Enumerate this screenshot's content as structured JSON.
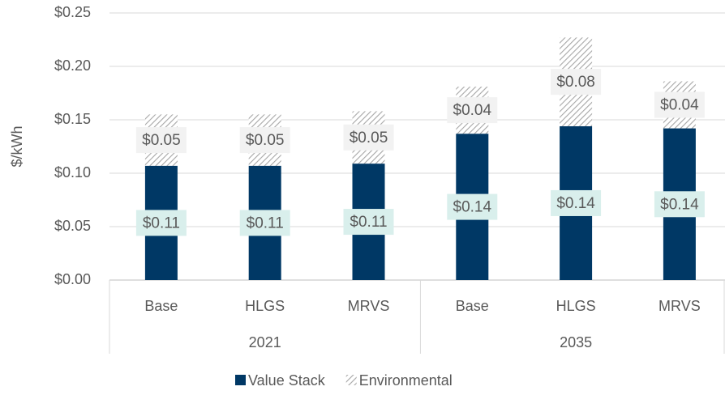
{
  "chart_data": {
    "type": "stacked_bar",
    "y_label": "$/kWh",
    "groups": [
      {
        "name": "2021",
        "categories": [
          "Base",
          "HLGS",
          "MRVS"
        ]
      },
      {
        "name": "2035",
        "categories": [
          "Base",
          "HLGS",
          "MRVS"
        ]
      }
    ],
    "series": [
      {
        "name": "Value Stack",
        "color": "#003865",
        "values": [
          0.107,
          0.107,
          0.109,
          0.137,
          0.144,
          0.142
        ],
        "value_labels": [
          "$0.11",
          "$0.11",
          "$0.11",
          "$0.14",
          "$0.14",
          "$0.14"
        ]
      },
      {
        "name": "Environmental",
        "color": "#a6a6a6",
        "pattern": "hatch",
        "values": [
          0.048,
          0.048,
          0.049,
          0.044,
          0.083,
          0.044
        ],
        "value_labels": [
          "$0.05",
          "$0.05",
          "$0.05",
          "$0.04",
          "$0.08",
          "$0.04"
        ]
      }
    ],
    "ylim": [
      0,
      0.25
    ],
    "yticks": [
      {
        "value": 0,
        "label": "$0.00"
      },
      {
        "value": 0.05,
        "label": "$0.05"
      },
      {
        "value": 0.1,
        "label": "$0.10"
      },
      {
        "value": 0.15,
        "label": "$0.15"
      },
      {
        "value": 0.2,
        "label": "$0.20"
      },
      {
        "value": 0.25,
        "label": "$0.25"
      }
    ],
    "grid": true,
    "legend": "bottom"
  }
}
